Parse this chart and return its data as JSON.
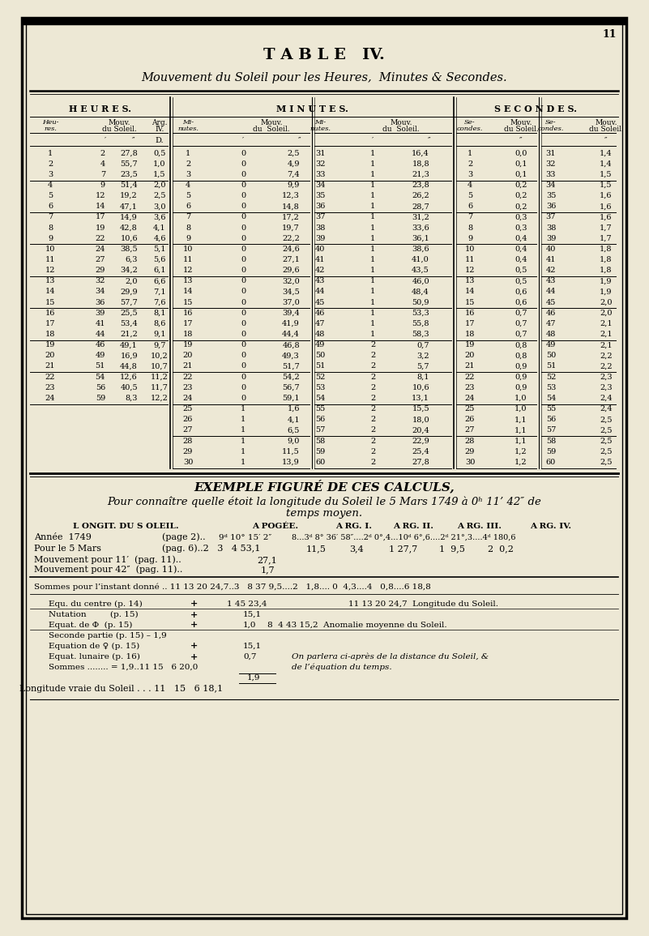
{
  "bg_color": "#ede8d5",
  "page_number": "11",
  "title": "T A B L E   IV.",
  "subtitle": "Mouvement du Soleil pour les Heures,  Minutes & Secondes.",
  "heures_data": [
    [
      1,
      "2",
      "27,8",
      "0,5"
    ],
    [
      2,
      "4",
      "55,7",
      "1,0"
    ],
    [
      3,
      "7",
      "23,5",
      "1,5"
    ],
    [
      4,
      "9",
      "51,4",
      "2,0"
    ],
    [
      5,
      "12",
      "19,2",
      "2,5"
    ],
    [
      6,
      "14",
      "47,1",
      "3,0"
    ],
    [
      7,
      "17",
      "14,9",
      "3,6"
    ],
    [
      8,
      "19",
      "42,8",
      "4,1"
    ],
    [
      9,
      "22",
      "10,6",
      "4,6"
    ],
    [
      10,
      "24",
      "38,5",
      "5,1"
    ],
    [
      11,
      "27",
      "6,3",
      "5,6"
    ],
    [
      12,
      "29",
      "34,2",
      "6,1"
    ],
    [
      13,
      "32",
      "2,0",
      "6,6"
    ],
    [
      14,
      "34",
      "29,9",
      "7,1"
    ],
    [
      15,
      "36",
      "57,7",
      "7,6"
    ],
    [
      16,
      "39",
      "25,5",
      "8,1"
    ],
    [
      17,
      "41",
      "53,4",
      "8,6"
    ],
    [
      18,
      "44",
      "21,2",
      "9,1"
    ],
    [
      19,
      "46",
      "49,1",
      "9,7"
    ],
    [
      20,
      "49",
      "16,9",
      "10,2"
    ],
    [
      21,
      "51",
      "44,8",
      "10,7"
    ],
    [
      22,
      "54",
      "12,6",
      "11,2"
    ],
    [
      23,
      "56",
      "40,5",
      "11,7"
    ],
    [
      24,
      "59",
      "8,3",
      "12,2"
    ]
  ],
  "minutes_left_data": [
    [
      1,
      "0",
      "2,5"
    ],
    [
      2,
      "0",
      "4,9"
    ],
    [
      3,
      "0",
      "7,4"
    ],
    [
      4,
      "0",
      "9,9"
    ],
    [
      5,
      "0",
      "12,3"
    ],
    [
      6,
      "0",
      "14,8"
    ],
    [
      7,
      "0",
      "17,2"
    ],
    [
      8,
      "0",
      "19,7"
    ],
    [
      9,
      "0",
      "22,2"
    ],
    [
      10,
      "0",
      "24,6"
    ],
    [
      11,
      "0",
      "27,1"
    ],
    [
      12,
      "0",
      "29,6"
    ],
    [
      13,
      "0",
      "32,0"
    ],
    [
      14,
      "0",
      "34,5"
    ],
    [
      15,
      "0",
      "37,0"
    ],
    [
      16,
      "0",
      "39,4"
    ],
    [
      17,
      "0",
      "41,9"
    ],
    [
      18,
      "0",
      "44,4"
    ],
    [
      19,
      "0",
      "46,8"
    ],
    [
      20,
      "0",
      "49,3"
    ],
    [
      21,
      "0",
      "51,7"
    ],
    [
      22,
      "0",
      "54,2"
    ],
    [
      23,
      "0",
      "56,7"
    ],
    [
      24,
      "0",
      "59,1"
    ],
    [
      25,
      "1",
      "1,6"
    ],
    [
      26,
      "1",
      "4,1"
    ],
    [
      27,
      "1",
      "6,5"
    ],
    [
      28,
      "1",
      "9,0"
    ],
    [
      29,
      "1",
      "11,5"
    ],
    [
      30,
      "1",
      "13,9"
    ]
  ],
  "minutes_right_data": [
    [
      31,
      "1",
      "16,4"
    ],
    [
      32,
      "1",
      "18,8"
    ],
    [
      33,
      "1",
      "21,3"
    ],
    [
      34,
      "1",
      "23,8"
    ],
    [
      35,
      "1",
      "26,2"
    ],
    [
      36,
      "1",
      "28,7"
    ],
    [
      37,
      "1",
      "31,2"
    ],
    [
      38,
      "1",
      "33,6"
    ],
    [
      39,
      "1",
      "36,1"
    ],
    [
      40,
      "1",
      "38,6"
    ],
    [
      41,
      "1",
      "41,0"
    ],
    [
      42,
      "1",
      "43,5"
    ],
    [
      43,
      "1",
      "46,0"
    ],
    [
      44,
      "1",
      "48,4"
    ],
    [
      45,
      "1",
      "50,9"
    ],
    [
      46,
      "1",
      "53,3"
    ],
    [
      47,
      "1",
      "55,8"
    ],
    [
      48,
      "1",
      "58,3"
    ],
    [
      49,
      "2",
      "0,7"
    ],
    [
      50,
      "2",
      "3,2"
    ],
    [
      51,
      "2",
      "5,7"
    ],
    [
      52,
      "2",
      "8,1"
    ],
    [
      53,
      "2",
      "10,6"
    ],
    [
      54,
      "2",
      "13,1"
    ],
    [
      55,
      "2",
      "15,5"
    ],
    [
      56,
      "2",
      "18,0"
    ],
    [
      57,
      "2",
      "20,4"
    ],
    [
      58,
      "2",
      "22,9"
    ],
    [
      59,
      "2",
      "25,4"
    ],
    [
      60,
      "2",
      "27,8"
    ]
  ],
  "secondes_left_data": [
    [
      1,
      "0,0"
    ],
    [
      2,
      "0,1"
    ],
    [
      3,
      "0,1"
    ],
    [
      4,
      "0,2"
    ],
    [
      5,
      "0,2"
    ],
    [
      6,
      "0,2"
    ],
    [
      7,
      "0,3"
    ],
    [
      8,
      "0,3"
    ],
    [
      9,
      "0,4"
    ],
    [
      10,
      "0,4"
    ],
    [
      11,
      "0,4"
    ],
    [
      12,
      "0,5"
    ],
    [
      13,
      "0,5"
    ],
    [
      14,
      "0,6"
    ],
    [
      15,
      "0,6"
    ],
    [
      16,
      "0,7"
    ],
    [
      17,
      "0,7"
    ],
    [
      18,
      "0,7"
    ],
    [
      19,
      "0,8"
    ],
    [
      20,
      "0,8"
    ],
    [
      21,
      "0,9"
    ],
    [
      22,
      "0,9"
    ],
    [
      23,
      "0,9"
    ],
    [
      24,
      "1,0"
    ],
    [
      25,
      "1,0"
    ],
    [
      26,
      "1,1"
    ],
    [
      27,
      "1,1"
    ],
    [
      28,
      "1,1"
    ],
    [
      29,
      "1,2"
    ],
    [
      30,
      "1,2"
    ]
  ],
  "secondes_right_data": [
    [
      31,
      "1,4"
    ],
    [
      32,
      "1,4"
    ],
    [
      33,
      "1,5"
    ],
    [
      34,
      "1,5"
    ],
    [
      35,
      "1,6"
    ],
    [
      36,
      "1,6"
    ],
    [
      37,
      "1,6"
    ],
    [
      38,
      "1,7"
    ],
    [
      39,
      "1,7"
    ],
    [
      40,
      "1,8"
    ],
    [
      41,
      "1,8"
    ],
    [
      42,
      "1,8"
    ],
    [
      43,
      "1,9"
    ],
    [
      44,
      "1,9"
    ],
    [
      45,
      "2,0"
    ],
    [
      46,
      "2,0"
    ],
    [
      47,
      "2,1"
    ],
    [
      48,
      "2,1"
    ],
    [
      49,
      "2,1"
    ],
    [
      50,
      "2,2"
    ],
    [
      51,
      "2,2"
    ],
    [
      52,
      "2,3"
    ],
    [
      53,
      "2,3"
    ],
    [
      54,
      "2,4"
    ],
    [
      55,
      "2,4"
    ],
    [
      56,
      "2,5"
    ],
    [
      57,
      "2,5"
    ],
    [
      58,
      "2,5"
    ],
    [
      59,
      "2,5"
    ],
    [
      60,
      "2,5"
    ]
  ]
}
